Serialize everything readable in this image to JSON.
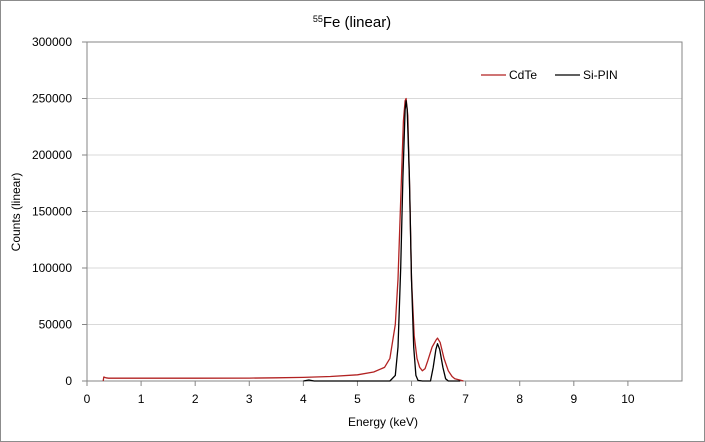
{
  "chart_data": {
    "type": "line",
    "title": {
      "superscript": "55",
      "main": "Fe (linear)"
    },
    "xlabel": "Energy (keV)",
    "ylabel": "Counts (linear)",
    "xlim": [
      0,
      11
    ],
    "ylim": [
      0,
      300000
    ],
    "x_ticks": [
      "0",
      "1",
      "2",
      "3",
      "4",
      "5",
      "6",
      "7",
      "8",
      "9",
      "10"
    ],
    "y_ticks": [
      "0",
      "50000",
      "100000",
      "150000",
      "200000",
      "250000",
      "300000"
    ],
    "grid": "horizontal",
    "legend_position": "top-right",
    "series": [
      {
        "name": "CdTe",
        "color": "#b22222",
        "points": [
          [
            0.3,
            0
          ],
          [
            0.31,
            3500
          ],
          [
            0.35,
            2800
          ],
          [
            0.4,
            2500
          ],
          [
            1.0,
            2500
          ],
          [
            2.0,
            2500
          ],
          [
            3.0,
            2600
          ],
          [
            3.5,
            2800
          ],
          [
            4.0,
            3200
          ],
          [
            4.5,
            4000
          ],
          [
            5.0,
            5500
          ],
          [
            5.3,
            8000
          ],
          [
            5.5,
            12000
          ],
          [
            5.6,
            20000
          ],
          [
            5.7,
            50000
          ],
          [
            5.75,
            90000
          ],
          [
            5.8,
            160000
          ],
          [
            5.85,
            230000
          ],
          [
            5.88,
            248000
          ],
          [
            5.9,
            250000
          ],
          [
            5.93,
            235000
          ],
          [
            5.97,
            160000
          ],
          [
            6.0,
            90000
          ],
          [
            6.05,
            40000
          ],
          [
            6.1,
            20000
          ],
          [
            6.15,
            12000
          ],
          [
            6.2,
            9000
          ],
          [
            6.25,
            11000
          ],
          [
            6.3,
            18000
          ],
          [
            6.38,
            30000
          ],
          [
            6.45,
            36000
          ],
          [
            6.48,
            38000
          ],
          [
            6.53,
            34000
          ],
          [
            6.6,
            20000
          ],
          [
            6.68,
            9000
          ],
          [
            6.75,
            4000
          ],
          [
            6.8,
            2000
          ],
          [
            6.9,
            800
          ],
          [
            6.96,
            0
          ]
        ]
      },
      {
        "name": "Si-PIN",
        "color": "#000000",
        "points": [
          [
            4.0,
            0
          ],
          [
            4.1,
            900
          ],
          [
            4.2,
            0
          ],
          [
            5.6,
            0
          ],
          [
            5.7,
            5000
          ],
          [
            5.75,
            30000
          ],
          [
            5.8,
            100000
          ],
          [
            5.84,
            180000
          ],
          [
            5.88,
            240000
          ],
          [
            5.9,
            248000
          ],
          [
            5.92,
            240000
          ],
          [
            5.96,
            180000
          ],
          [
            6.0,
            90000
          ],
          [
            6.04,
            30000
          ],
          [
            6.08,
            5000
          ],
          [
            6.12,
            500
          ],
          [
            6.2,
            0
          ],
          [
            6.35,
            0
          ],
          [
            6.4,
            12000
          ],
          [
            6.45,
            28000
          ],
          [
            6.48,
            33000
          ],
          [
            6.52,
            28000
          ],
          [
            6.58,
            12000
          ],
          [
            6.63,
            2000
          ],
          [
            6.68,
            0
          ],
          [
            6.9,
            0
          ]
        ]
      }
    ]
  }
}
